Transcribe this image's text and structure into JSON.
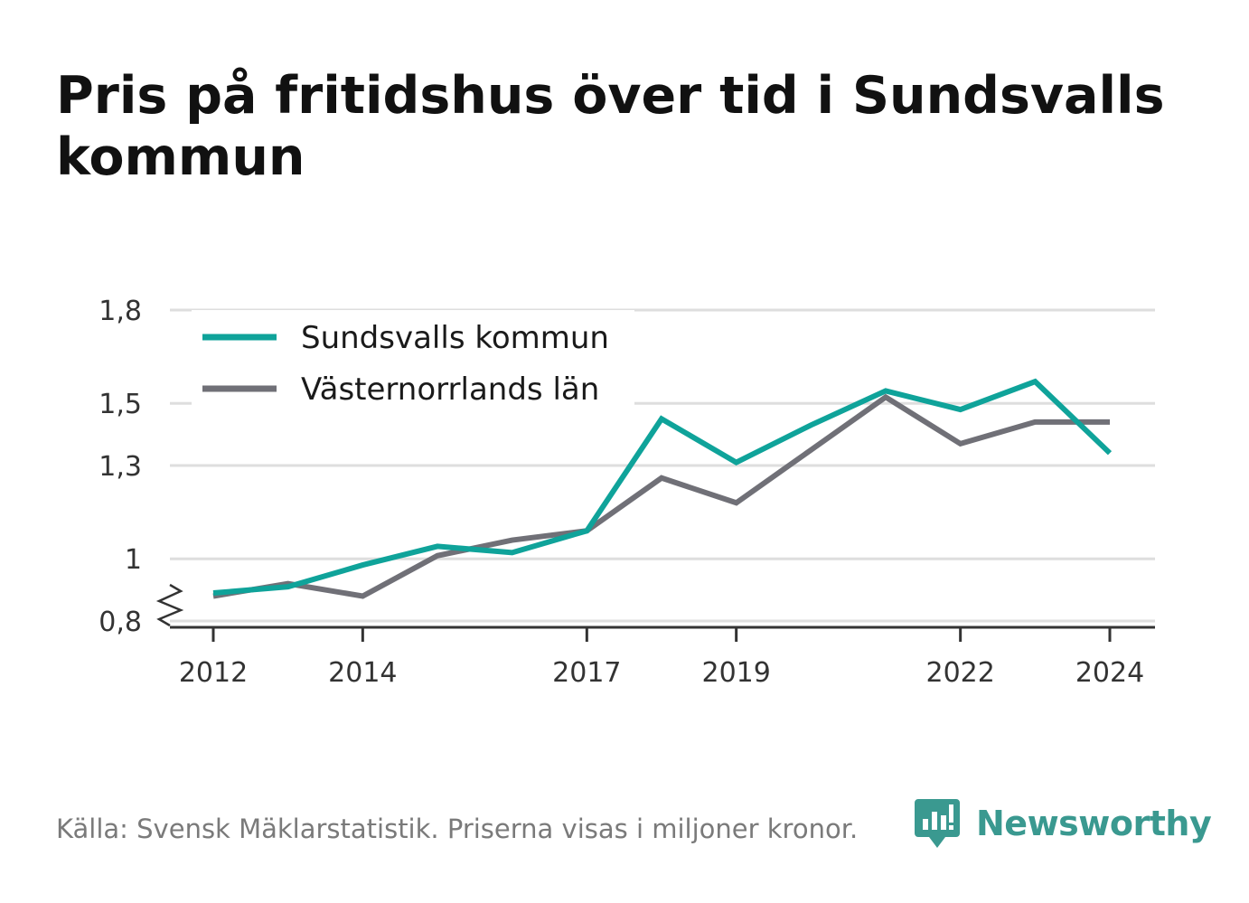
{
  "title": "Pris på fritidshus över tid i Sundsvalls kommun",
  "footer": "Källa: Svensk Mäklarstatistik. Priserna visas i miljoner kronor.",
  "brand": {
    "name": "Newsworthy",
    "icon": "newsworthy-chart-bubble-icon",
    "color": "#3a9990"
  },
  "chart_data": {
    "type": "line",
    "x": [
      2012,
      2013,
      2014,
      2015,
      2016,
      2017,
      2018,
      2019,
      2020,
      2021,
      2022,
      2023,
      2024
    ],
    "x_ticks": [
      "2012",
      "2014",
      "2017",
      "2019",
      "2022",
      "2024"
    ],
    "y_ticks": [
      "0,8",
      "1",
      "1,3",
      "1,5",
      "1,8"
    ],
    "ylim": [
      0.8,
      1.8
    ],
    "y_axis_break": true,
    "grid": "horizontal",
    "legend_position": "top-left",
    "series": [
      {
        "name": "Sundsvalls kommun",
        "color": "#0fa39a",
        "values": [
          0.89,
          0.91,
          0.98,
          1.04,
          1.02,
          1.09,
          1.45,
          1.31,
          1.43,
          1.54,
          1.48,
          1.57,
          1.34
        ]
      },
      {
        "name": "Västernorrlands län",
        "color": "#707077",
        "values": [
          0.88,
          0.92,
          0.88,
          1.01,
          1.06,
          1.09,
          1.26,
          1.18,
          1.35,
          1.52,
          1.37,
          1.44,
          1.44
        ]
      }
    ]
  }
}
